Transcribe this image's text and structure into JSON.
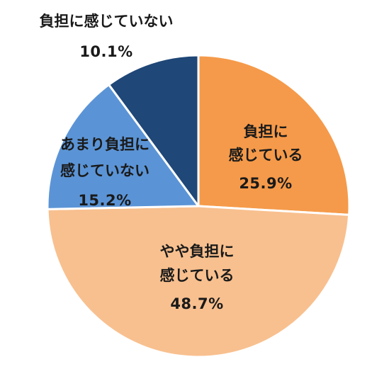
{
  "chart_data": {
    "type": "pie",
    "start": "12 o'clock",
    "direction": "clockwise",
    "slices": [
      {
        "label_lines": [
          "負担に",
          "感じている"
        ],
        "value": 25.9,
        "value_text": "25.9%",
        "color": "#F59A4A"
      },
      {
        "label_lines": [
          "やや負担に",
          "感じている"
        ],
        "value": 48.7,
        "value_text": "48.7%",
        "color": "#F8C08F"
      },
      {
        "label_lines": [
          "あまり負担に",
          "感じていない"
        ],
        "value": 15.2,
        "value_text": "15.2%",
        "color": "#5B94D6"
      },
      {
        "label_lines": [
          "負担に感じていない"
        ],
        "value": 10.1,
        "value_text": "10.1%",
        "color": "#1F4777"
      }
    ]
  }
}
